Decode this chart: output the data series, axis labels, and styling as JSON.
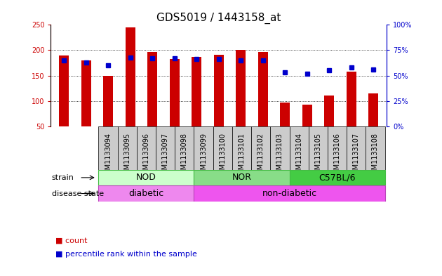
{
  "title": "GDS5019 / 1443158_at",
  "samples": [
    "GSM1133094",
    "GSM1133095",
    "GSM1133096",
    "GSM1133097",
    "GSM1133098",
    "GSM1133099",
    "GSM1133100",
    "GSM1133101",
    "GSM1133102",
    "GSM1133103",
    "GSM1133104",
    "GSM1133105",
    "GSM1133106",
    "GSM1133107",
    "GSM1133108"
  ],
  "counts": [
    189,
    180,
    149,
    245,
    196,
    183,
    187,
    191,
    201,
    196,
    96,
    93,
    111,
    158,
    115
  ],
  "percentiles": [
    65,
    63,
    60,
    68,
    67,
    67,
    66,
    66,
    65,
    65,
    53,
    52,
    55,
    58,
    56
  ],
  "ylim_left": [
    50,
    250
  ],
  "ylim_right": [
    0,
    100
  ],
  "yticks_left": [
    50,
    100,
    150,
    200,
    250
  ],
  "yticks_right": [
    0,
    25,
    50,
    75,
    100
  ],
  "bar_color": "#cc0000",
  "dot_color": "#0000cc",
  "bar_width": 0.45,
  "strains": [
    {
      "label": "NOD",
      "start": 0,
      "end": 5,
      "color": "#ccffcc",
      "edge_color": "#44bb44"
    },
    {
      "label": "NOR",
      "start": 5,
      "end": 10,
      "color": "#88dd88",
      "edge_color": "#44bb44"
    },
    {
      "label": "C57BL/6",
      "start": 10,
      "end": 15,
      "color": "#44cc44",
      "edge_color": "#44bb44"
    }
  ],
  "diseases": [
    {
      "label": "diabetic",
      "start": 0,
      "end": 5,
      "color": "#ee88ee",
      "edge_color": "#bb44bb"
    },
    {
      "label": "non-diabetic",
      "start": 5,
      "end": 15,
      "color": "#ee55ee",
      "edge_color": "#bb44bb"
    }
  ],
  "left_axis_color": "#cc0000",
  "right_axis_color": "#0000cc",
  "grid_color": "#000000",
  "bg_color": "#ffffff",
  "label_bg_color": "#cccccc",
  "tick_label_fontsize": 7,
  "title_fontsize": 11,
  "annotation_fontsize": 8,
  "strain_label_fontsize": 9,
  "disease_label_fontsize": 9,
  "left_label": "strain",
  "right_label": "disease state"
}
